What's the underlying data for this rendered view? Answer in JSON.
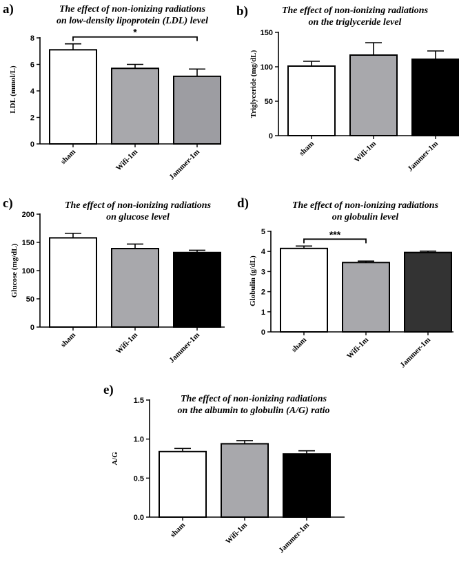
{
  "figure": {
    "panels_note": "five bar charts comparing sham, Wifi-1m and Jammer-1m groups"
  },
  "chart_data": [
    {
      "id": "a",
      "type": "bar",
      "letter": "a)",
      "title_lines": [
        "The effect of non-ionizing radiations",
        "on low-density lipoprotein (LDL) level"
      ],
      "ylabel": "LDL (mmol/L)",
      "categories": [
        "sham",
        "Wifi-1m",
        "Jammer-1m"
      ],
      "values": [
        7.1,
        5.7,
        5.1
      ],
      "errors": [
        0.45,
        0.3,
        0.55
      ],
      "colors": [
        "#ffffff",
        "#a8a8ac",
        "#9d9da2"
      ],
      "ylim": [
        0,
        8
      ],
      "yticks": [
        0,
        2,
        4,
        6,
        8
      ],
      "ytick_labels": [
        "0",
        "2",
        "4",
        "6",
        "8"
      ],
      "significance": {
        "from": 0,
        "to": 2,
        "label": "*"
      }
    },
    {
      "id": "b",
      "type": "bar",
      "letter": "b)",
      "title_lines": [
        "The effect of non-ionizing radiations",
        "on the triglyceride level"
      ],
      "ylabel": "Triglyceride (mg/dL)",
      "categories": [
        "sham",
        "Wifi-1m",
        "Jammer-1m"
      ],
      "values": [
        101,
        117,
        111
      ],
      "errors": [
        7,
        18,
        12
      ],
      "colors": [
        "#ffffff",
        "#a8a8ac",
        "#000000"
      ],
      "ylim": [
        0,
        150
      ],
      "yticks": [
        0,
        50,
        100,
        150
      ],
      "ytick_labels": [
        "0",
        "50",
        "100",
        "150"
      ]
    },
    {
      "id": "c",
      "type": "bar",
      "letter": "c)",
      "title_lines": [
        "The effect of non-ionizing radiations",
        "on glucose level"
      ],
      "ylabel": "Glucose (mg/dL)",
      "categories": [
        "sham",
        "Wifi-1m",
        "Jammer-1m"
      ],
      "values": [
        158,
        139,
        132
      ],
      "errors": [
        8,
        8,
        4
      ],
      "colors": [
        "#ffffff",
        "#a8a8ac",
        "#000000"
      ],
      "ylim": [
        0,
        200
      ],
      "yticks": [
        0,
        50,
        100,
        150,
        200
      ],
      "ytick_labels": [
        "0",
        "50",
        "100",
        "150",
        "200"
      ]
    },
    {
      "id": "d",
      "type": "bar",
      "letter": "d)",
      "title_lines": [
        "The effect of non-ionizing radiations",
        "on globulin level"
      ],
      "ylabel": "Globulin (g/dL)",
      "categories": [
        "sham",
        "Wifi-1m",
        "Jammer-1m"
      ],
      "values": [
        4.15,
        3.45,
        3.95
      ],
      "errors": [
        0.12,
        0.07,
        0.07
      ],
      "colors": [
        "#ffffff",
        "#a8a8ac",
        "#333333"
      ],
      "ylim": [
        0,
        5
      ],
      "yticks": [
        0,
        1,
        2,
        3,
        4,
        5
      ],
      "ytick_labels": [
        "0",
        "1",
        "2",
        "3",
        "4",
        "5"
      ],
      "significance": {
        "from": 0,
        "to": 1,
        "label": "***"
      }
    },
    {
      "id": "e",
      "type": "bar",
      "letter": "e)",
      "title_lines": [
        "The effect of non-ionizing radiations",
        "on the albumin to globulin (A/G) ratio"
      ],
      "ylabel": "A/G",
      "categories": [
        "sham",
        "Wifi-1m",
        "Jammer-1m"
      ],
      "values": [
        0.84,
        0.94,
        0.81
      ],
      "errors": [
        0.04,
        0.04,
        0.04
      ],
      "colors": [
        "#ffffff",
        "#a8a8ac",
        "#000000"
      ],
      "ylim": [
        0,
        1.5
      ],
      "yticks": [
        0,
        0.5,
        1.0,
        1.5
      ],
      "ytick_labels": [
        "0.0",
        "0.5",
        "1.0",
        "1.5"
      ]
    }
  ]
}
